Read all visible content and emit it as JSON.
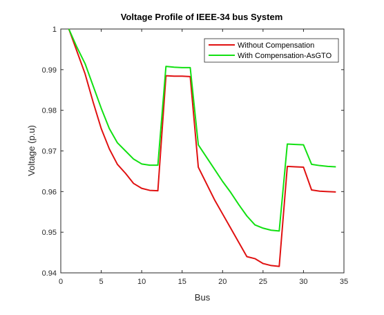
{
  "chart_data": {
    "type": "line",
    "title": "Voltage Profile of IEEE-34 bus System",
    "xlabel": "Bus",
    "ylabel": "Voltage (p.u)",
    "xlim": [
      0,
      35
    ],
    "ylim": [
      0.94,
      1.0
    ],
    "xticks": [
      0,
      5,
      10,
      15,
      20,
      25,
      30,
      35
    ],
    "yticks": [
      0.94,
      0.95,
      0.96,
      0.97,
      0.98,
      0.99,
      1.0
    ],
    "xtick_labels": [
      "0",
      "5",
      "10",
      "15",
      "20",
      "25",
      "30",
      "35"
    ],
    "ytick_labels": [
      "0.94",
      "0.95",
      "0.96",
      "0.97",
      "0.98",
      "0.99",
      "1"
    ],
    "grid": false,
    "legend_position": "top-right",
    "x": [
      1,
      2,
      3,
      4,
      5,
      6,
      7,
      8,
      9,
      10,
      11,
      12,
      13,
      14,
      15,
      16,
      17,
      18,
      19,
      20,
      21,
      22,
      23,
      24,
      25,
      26,
      27,
      28,
      29,
      30,
      31,
      32,
      33,
      34
    ],
    "series": [
      {
        "name": "Without Compensation",
        "color": "#e01010",
        "values": [
          1.0,
          0.9945,
          0.989,
          0.982,
          0.9755,
          0.9705,
          0.9667,
          0.9645,
          0.962,
          0.9608,
          0.9603,
          0.9602,
          0.9885,
          0.9884,
          0.9884,
          0.9883,
          0.966,
          0.962,
          0.958,
          0.9545,
          0.951,
          0.9475,
          0.944,
          0.9435,
          0.9423,
          0.9418,
          0.9416,
          0.9662,
          0.9661,
          0.966,
          0.9604,
          0.9601,
          0.96,
          0.9599
        ]
      },
      {
        "name": "With Compensation-AsGTO",
        "color": "#11e011",
        "values": [
          1.0,
          0.9955,
          0.9915,
          0.986,
          0.9805,
          0.9755,
          0.972,
          0.97,
          0.968,
          0.9668,
          0.9665,
          0.9665,
          0.9908,
          0.9906,
          0.9905,
          0.9905,
          0.9715,
          0.9685,
          0.9655,
          0.9625,
          0.9598,
          0.9568,
          0.954,
          0.9518,
          0.951,
          0.9505,
          0.9503,
          0.9717,
          0.9716,
          0.9715,
          0.9667,
          0.9664,
          0.9662,
          0.9661
        ]
      }
    ]
  }
}
